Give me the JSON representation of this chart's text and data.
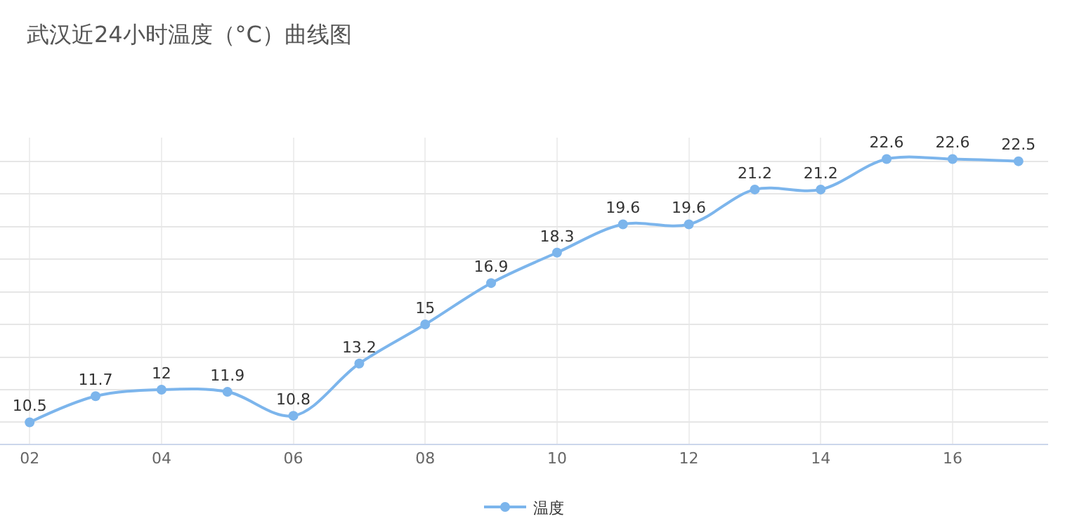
{
  "chart_data": {
    "type": "line",
    "title": "武汉近24小时温度（°C）曲线图",
    "categories": [
      "02",
      null,
      "04",
      null,
      "06",
      null,
      "08",
      null,
      "10",
      null,
      "12",
      null,
      "14",
      null,
      "16",
      null
    ],
    "series": [
      {
        "name": "温度",
        "color": "#7cb5ec",
        "values": [
          10.5,
          11.7,
          12,
          11.9,
          10.8,
          13.2,
          15,
          16.9,
          18.3,
          19.6,
          19.6,
          21.2,
          21.2,
          22.6,
          22.6,
          22.5
        ]
      }
    ],
    "tick_labels": "x",
    "grid": true,
    "legend": "bottom",
    "marker": "circle",
    "line_style": "solid",
    "data_labels": true
  }
}
